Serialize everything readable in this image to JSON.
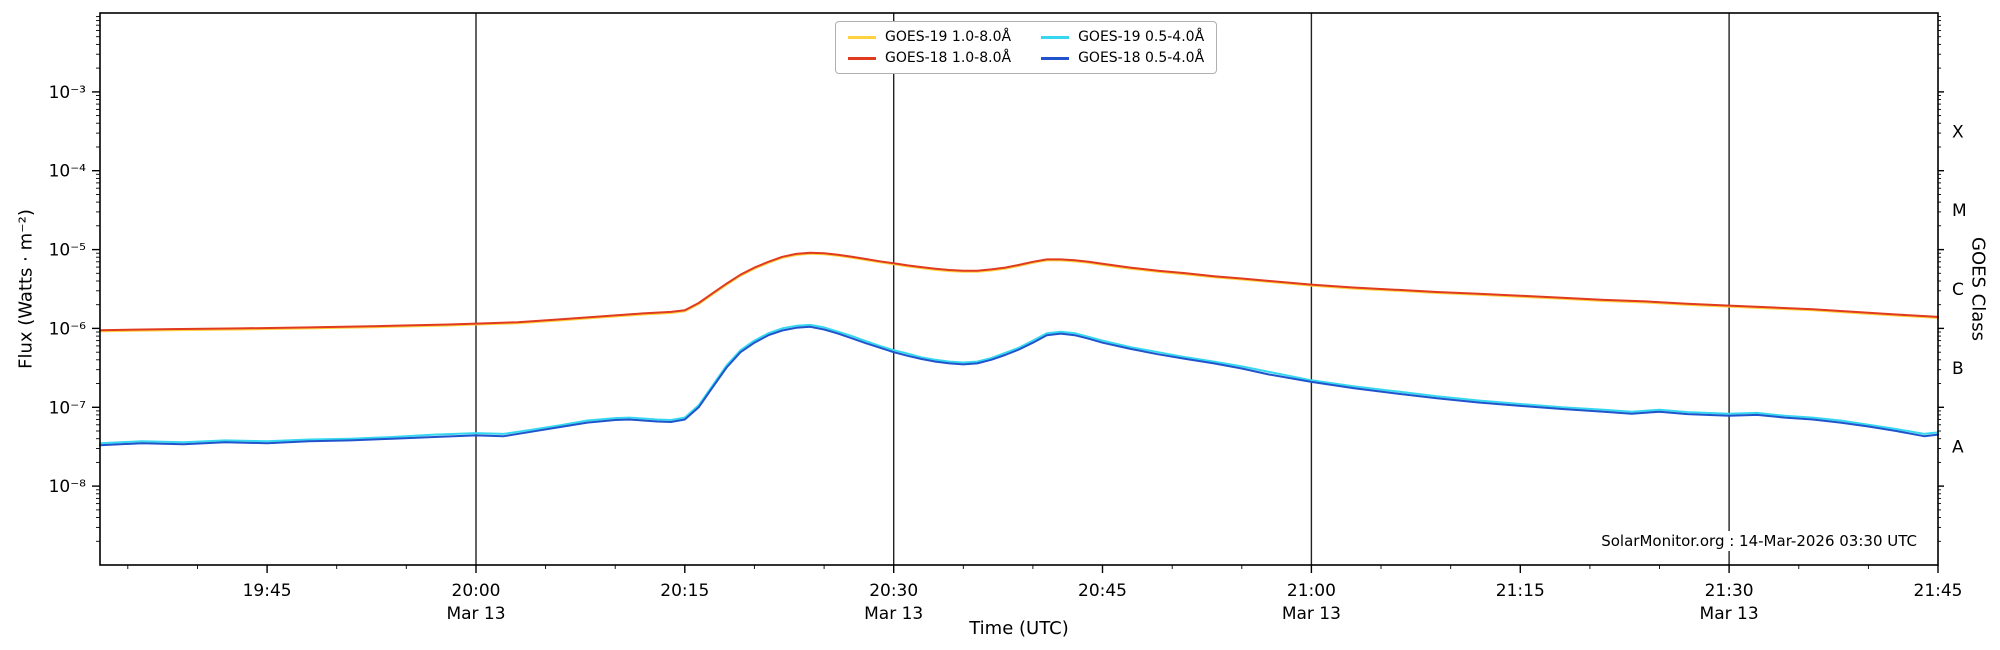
{
  "chart": {
    "watermark": "SolarMonitor.org : 14-Mar-2026 03:30 UTC"
  },
  "chart_data": {
    "type": "line",
    "title": "",
    "xlabel": "Time (UTC)",
    "ylabel": "Flux (Watts · m⁻²)",
    "ylabel_right": "GOES Class",
    "x_unit": "minutes after 19:00 UTC on 13-Mar-2026",
    "xlim": [
      33,
      165
    ],
    "ylim_exp": [
      -9,
      -2
    ],
    "yscale": "log",
    "grid": false,
    "legend_position": "top-center",
    "frame_color": "#000000",
    "hour_line_color": "#222222",
    "xticks": [
      {
        "m": 45,
        "label": "19:45"
      },
      {
        "m": 60,
        "label": "20:00",
        "sub": "Mar 13",
        "line": true
      },
      {
        "m": 75,
        "label": "20:15"
      },
      {
        "m": 90,
        "label": "20:30",
        "sub": "Mar 13",
        "line": true
      },
      {
        "m": 105,
        "label": "20:45"
      },
      {
        "m": 120,
        "label": "21:00",
        "sub": "Mar 13",
        "line": true
      },
      {
        "m": 135,
        "label": "21:15"
      },
      {
        "m": 150,
        "label": "21:30",
        "sub": "Mar 13",
        "line": true
      },
      {
        "m": 165,
        "label": "21:45"
      }
    ],
    "yticks": [
      {
        "exp": -3,
        "label": "10⁻³"
      },
      {
        "exp": -4,
        "label": "10⁻⁴"
      },
      {
        "exp": -5,
        "label": "10⁻⁵"
      },
      {
        "exp": -6,
        "label": "10⁻⁶"
      },
      {
        "exp": -7,
        "label": "10⁻⁷"
      },
      {
        "exp": -8,
        "label": "10⁻⁸"
      }
    ],
    "class_labels": [
      {
        "label": "X",
        "value": 0.000316
      },
      {
        "label": "M",
        "value": 3.16e-05
      },
      {
        "label": "C",
        "value": 3.16e-06
      },
      {
        "label": "B",
        "value": 3.16e-07
      },
      {
        "label": "A",
        "value": 3.16e-08
      }
    ],
    "series": [
      {
        "name": "GOES-19 1.0-8.0Å",
        "color": "#ffd23f",
        "points": [
          [
            33,
            9.2e-07
          ],
          [
            38,
            9.5e-07
          ],
          [
            43,
            9.7e-07
          ],
          [
            48,
            1e-06
          ],
          [
            53,
            1.04e-06
          ],
          [
            58,
            1.09e-06
          ],
          [
            60,
            1.12e-06
          ],
          [
            63,
            1.16e-06
          ],
          [
            66,
            1.26e-06
          ],
          [
            69,
            1.38e-06
          ],
          [
            72,
            1.5e-06
          ],
          [
            74,
            1.57e-06
          ],
          [
            75,
            1.65e-06
          ],
          [
            76,
            2.04e-06
          ],
          [
            77,
            2.72e-06
          ],
          [
            78,
            3.59e-06
          ],
          [
            79,
            4.66e-06
          ],
          [
            80,
            5.72e-06
          ],
          [
            81,
            6.79e-06
          ],
          [
            82,
            7.86e-06
          ],
          [
            83,
            8.54e-06
          ],
          [
            84,
            8.83e-06
          ],
          [
            85,
            8.73e-06
          ],
          [
            86,
            8.34e-06
          ],
          [
            87,
            7.86e-06
          ],
          [
            88,
            7.37e-06
          ],
          [
            89,
            6.89e-06
          ],
          [
            90,
            6.5e-06
          ],
          [
            91,
            6.11e-06
          ],
          [
            92,
            5.82e-06
          ],
          [
            93,
            5.53e-06
          ],
          [
            94,
            5.34e-06
          ],
          [
            95,
            5.24e-06
          ],
          [
            96,
            5.24e-06
          ],
          [
            97,
            5.43e-06
          ],
          [
            98,
            5.72e-06
          ],
          [
            99,
            6.21e-06
          ],
          [
            100,
            6.79e-06
          ],
          [
            101,
            7.28e-06
          ],
          [
            102,
            7.28e-06
          ],
          [
            103,
            7.08e-06
          ],
          [
            104,
            6.79e-06
          ],
          [
            105,
            6.4e-06
          ],
          [
            107,
            5.72e-06
          ],
          [
            109,
            5.24e-06
          ],
          [
            111,
            4.85e-06
          ],
          [
            113,
            4.46e-06
          ],
          [
            115,
            4.17e-06
          ],
          [
            117,
            3.88e-06
          ],
          [
            120,
            3.49e-06
          ],
          [
            123,
            3.2e-06
          ],
          [
            126,
            3.01e-06
          ],
          [
            129,
            2.81e-06
          ],
          [
            132,
            2.67e-06
          ],
          [
            135,
            2.52e-06
          ],
          [
            138,
            2.38e-06
          ],
          [
            141,
            2.23e-06
          ],
          [
            144,
            2.13e-06
          ],
          [
            147,
            1.99e-06
          ],
          [
            150,
            1.89e-06
          ],
          [
            153,
            1.79e-06
          ],
          [
            156,
            1.7e-06
          ],
          [
            159,
            1.57e-06
          ],
          [
            162,
            1.46e-06
          ],
          [
            165,
            1.36e-06
          ]
        ]
      },
      {
        "name": "GOES-19 0.5-4.0Å",
        "color": "#35d8f0",
        "points": [
          [
            33,
            3.5e-08
          ],
          [
            36,
            3.7e-08
          ],
          [
            39,
            3.6e-08
          ],
          [
            42,
            3.8e-08
          ],
          [
            45,
            3.7e-08
          ],
          [
            48,
            3.9e-08
          ],
          [
            51,
            4e-08
          ],
          [
            54,
            4.2e-08
          ],
          [
            57,
            4.5e-08
          ],
          [
            60,
            4.7e-08
          ],
          [
            62,
            4.6e-08
          ],
          [
            64,
            5.2e-08
          ],
          [
            66,
            5.9e-08
          ],
          [
            68,
            6.8e-08
          ],
          [
            70,
            7.3e-08
          ],
          [
            71,
            7.4e-08
          ],
          [
            72,
            7.2e-08
          ],
          [
            73,
            7e-08
          ],
          [
            74,
            6.9e-08
          ],
          [
            75,
            7.4e-08
          ],
          [
            76,
            1.06e-07
          ],
          [
            77,
            1.9e-07
          ],
          [
            78,
            3.4e-07
          ],
          [
            79,
            5.3e-07
          ],
          [
            80,
            7e-07
          ],
          [
            81,
            8.7e-07
          ],
          [
            82,
            1e-06
          ],
          [
            83,
            1.08e-06
          ],
          [
            84,
            1.11e-06
          ],
          [
            85,
            1.03e-06
          ],
          [
            86,
            9.1e-07
          ],
          [
            87,
            8e-07
          ],
          [
            88,
            6.9e-07
          ],
          [
            89,
            6e-07
          ],
          [
            90,
            5.3e-07
          ],
          [
            91,
            4.8e-07
          ],
          [
            92,
            4.3e-07
          ],
          [
            93,
            4e-07
          ],
          [
            94,
            3.8e-07
          ],
          [
            95,
            3.7e-07
          ],
          [
            96,
            3.8e-07
          ],
          [
            97,
            4.2e-07
          ],
          [
            98,
            4.9e-07
          ],
          [
            99,
            5.7e-07
          ],
          [
            100,
            7e-07
          ],
          [
            101,
            8.7e-07
          ],
          [
            102,
            9.1e-07
          ],
          [
            103,
            8.7e-07
          ],
          [
            104,
            7.8e-07
          ],
          [
            105,
            7e-07
          ],
          [
            107,
            5.8e-07
          ],
          [
            109,
            5e-07
          ],
          [
            111,
            4.3e-07
          ],
          [
            113,
            3.8e-07
          ],
          [
            115,
            3.3e-07
          ],
          [
            117,
            2.8e-07
          ],
          [
            120,
            2.2e-07
          ],
          [
            123,
            1.85e-07
          ],
          [
            126,
            1.6e-07
          ],
          [
            129,
            1.38e-07
          ],
          [
            132,
            1.22e-07
          ],
          [
            135,
            1.1e-07
          ],
          [
            138,
            1e-07
          ],
          [
            141,
            9.3e-08
          ],
          [
            143,
            8.8e-08
          ],
          [
            145,
            9.3e-08
          ],
          [
            147,
            8.7e-08
          ],
          [
            150,
            8.3e-08
          ],
          [
            152,
            8.5e-08
          ],
          [
            154,
            7.8e-08
          ],
          [
            156,
            7.4e-08
          ],
          [
            158,
            6.8e-08
          ],
          [
            160,
            6e-08
          ],
          [
            162,
            5.3e-08
          ],
          [
            164,
            4.6e-08
          ],
          [
            165,
            4.8e-08
          ]
        ]
      },
      {
        "name": "GOES-18 1.0-8.0Å",
        "color": "#e03a1f",
        "points": [
          [
            33,
            9.5e-07
          ],
          [
            38,
            9.8e-07
          ],
          [
            43,
            1e-06
          ],
          [
            48,
            1.03e-06
          ],
          [
            53,
            1.07e-06
          ],
          [
            58,
            1.12e-06
          ],
          [
            60,
            1.15e-06
          ],
          [
            63,
            1.2e-06
          ],
          [
            66,
            1.3e-06
          ],
          [
            69,
            1.42e-06
          ],
          [
            72,
            1.55e-06
          ],
          [
            74,
            1.62e-06
          ],
          [
            75,
            1.7e-06
          ],
          [
            76,
            2.1e-06
          ],
          [
            77,
            2.8e-06
          ],
          [
            78,
            3.7e-06
          ],
          [
            79,
            4.8e-06
          ],
          [
            80,
            5.9e-06
          ],
          [
            81,
            7e-06
          ],
          [
            82,
            8.1e-06
          ],
          [
            83,
            8.8e-06
          ],
          [
            84,
            9.1e-06
          ],
          [
            85,
            9e-06
          ],
          [
            86,
            8.6e-06
          ],
          [
            87,
            8.1e-06
          ],
          [
            88,
            7.6e-06
          ],
          [
            89,
            7.1e-06
          ],
          [
            90,
            6.7e-06
          ],
          [
            91,
            6.3e-06
          ],
          [
            92,
            6e-06
          ],
          [
            93,
            5.7e-06
          ],
          [
            94,
            5.5e-06
          ],
          [
            95,
            5.4e-06
          ],
          [
            96,
            5.4e-06
          ],
          [
            97,
            5.6e-06
          ],
          [
            98,
            5.9e-06
          ],
          [
            99,
            6.4e-06
          ],
          [
            100,
            7e-06
          ],
          [
            101,
            7.5e-06
          ],
          [
            102,
            7.5e-06
          ],
          [
            103,
            7.3e-06
          ],
          [
            104,
            7e-06
          ],
          [
            105,
            6.6e-06
          ],
          [
            107,
            5.9e-06
          ],
          [
            109,
            5.4e-06
          ],
          [
            111,
            5e-06
          ],
          [
            113,
            4.6e-06
          ],
          [
            115,
            4.3e-06
          ],
          [
            117,
            4e-06
          ],
          [
            120,
            3.6e-06
          ],
          [
            123,
            3.3e-06
          ],
          [
            126,
            3.1e-06
          ],
          [
            129,
            2.9e-06
          ],
          [
            132,
            2.75e-06
          ],
          [
            135,
            2.6e-06
          ],
          [
            138,
            2.45e-06
          ],
          [
            141,
            2.3e-06
          ],
          [
            144,
            2.2e-06
          ],
          [
            147,
            2.05e-06
          ],
          [
            150,
            1.95e-06
          ],
          [
            153,
            1.85e-06
          ],
          [
            156,
            1.75e-06
          ],
          [
            159,
            1.62e-06
          ],
          [
            162,
            1.5e-06
          ],
          [
            165,
            1.4e-06
          ]
        ]
      },
      {
        "name": "GOES-18 0.5-4.0Å",
        "color": "#2153cc",
        "points": [
          [
            33,
            3.3e-08
          ],
          [
            36,
            3.5e-08
          ],
          [
            39,
            3.4e-08
          ],
          [
            42,
            3.6e-08
          ],
          [
            45,
            3.5e-08
          ],
          [
            48,
            3.7e-08
          ],
          [
            51,
            3.8e-08
          ],
          [
            54,
            4e-08
          ],
          [
            57,
            4.2e-08
          ],
          [
            60,
            4.4e-08
          ],
          [
            62,
            4.3e-08
          ],
          [
            64,
            4.9e-08
          ],
          [
            66,
            5.6e-08
          ],
          [
            68,
            6.4e-08
          ],
          [
            70,
            6.9e-08
          ],
          [
            71,
            7e-08
          ],
          [
            72,
            6.8e-08
          ],
          [
            73,
            6.6e-08
          ],
          [
            74,
            6.5e-08
          ],
          [
            75,
            7e-08
          ],
          [
            76,
            1e-07
          ],
          [
            77,
            1.8e-07
          ],
          [
            78,
            3.2e-07
          ],
          [
            79,
            5e-07
          ],
          [
            80,
            6.6e-07
          ],
          [
            81,
            8.2e-07
          ],
          [
            82,
            9.4e-07
          ],
          [
            83,
            1.02e-06
          ],
          [
            84,
            1.05e-06
          ],
          [
            85,
            9.7e-07
          ],
          [
            86,
            8.6e-07
          ],
          [
            87,
            7.5e-07
          ],
          [
            88,
            6.5e-07
          ],
          [
            89,
            5.7e-07
          ],
          [
            90,
            5e-07
          ],
          [
            91,
            4.5e-07
          ],
          [
            92,
            4.1e-07
          ],
          [
            93,
            3.8e-07
          ],
          [
            94,
            3.6e-07
          ],
          [
            95,
            3.5e-07
          ],
          [
            96,
            3.6e-07
          ],
          [
            97,
            4e-07
          ],
          [
            98,
            4.6e-07
          ],
          [
            99,
            5.4e-07
          ],
          [
            100,
            6.6e-07
          ],
          [
            101,
            8.2e-07
          ],
          [
            102,
            8.6e-07
          ],
          [
            103,
            8.2e-07
          ],
          [
            104,
            7.4e-07
          ],
          [
            105,
            6.6e-07
          ],
          [
            107,
            5.5e-07
          ],
          [
            109,
            4.7e-07
          ],
          [
            111,
            4.1e-07
          ],
          [
            113,
            3.6e-07
          ],
          [
            115,
            3.1e-07
          ],
          [
            117,
            2.6e-07
          ],
          [
            120,
            2.1e-07
          ],
          [
            123,
            1.75e-07
          ],
          [
            126,
            1.5e-07
          ],
          [
            129,
            1.3e-07
          ],
          [
            132,
            1.15e-07
          ],
          [
            135,
            1.04e-07
          ],
          [
            138,
            9.5e-08
          ],
          [
            141,
            8.8e-08
          ],
          [
            143,
            8.3e-08
          ],
          [
            145,
            8.8e-08
          ],
          [
            147,
            8.2e-08
          ],
          [
            150,
            7.8e-08
          ],
          [
            152,
            8e-08
          ],
          [
            154,
            7.4e-08
          ],
          [
            156,
            7e-08
          ],
          [
            158,
            6.4e-08
          ],
          [
            160,
            5.7e-08
          ],
          [
            162,
            5e-08
          ],
          [
            164,
            4.3e-08
          ],
          [
            165,
            4.5e-08
          ]
        ]
      }
    ]
  }
}
